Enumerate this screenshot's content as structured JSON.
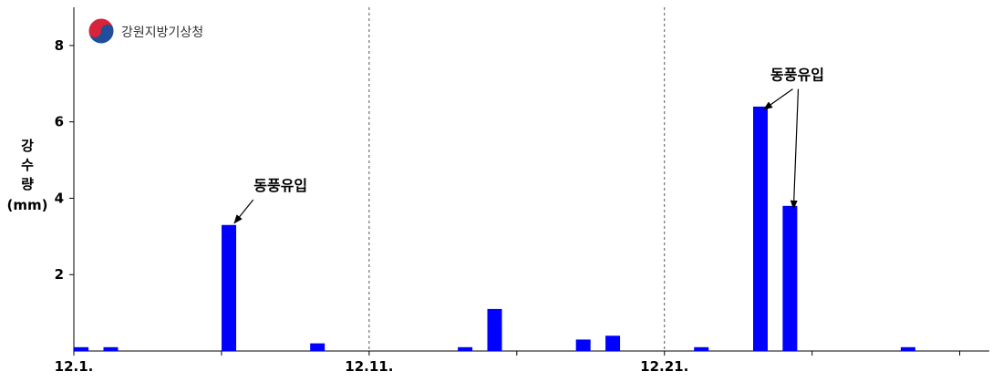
{
  "logo": {
    "text": "강원지방기상청",
    "icon": "taegeuk-icon",
    "colors": {
      "red": "#d6243a",
      "blue": "#1f4e9a"
    }
  },
  "chart_data": {
    "type": "bar",
    "ylabel_lines": [
      "강",
      "수",
      "량",
      "(mm)"
    ],
    "ylim": [
      0,
      9
    ],
    "yticks": [
      2,
      4,
      6,
      8
    ],
    "xticks": [
      "12.1.",
      "12.11.",
      "12.21."
    ],
    "xtick_days": [
      1,
      11,
      21
    ],
    "xlim_days": [
      1,
      32
    ],
    "dashed_vlines_days": [
      11,
      21
    ],
    "grid": false,
    "legend": "none",
    "bar_color": "#0000ff",
    "days": [
      1.25,
      2.25,
      6.25,
      9.25,
      14.25,
      15.25,
      18.25,
      19.25,
      22.25,
      24.25,
      25.25,
      29.25
    ],
    "values": [
      0.1,
      0.1,
      3.3,
      0.2,
      0.1,
      1.1,
      0.3,
      0.4,
      0.1,
      6.4,
      3.8,
      0.1
    ],
    "annotations": [
      {
        "text": "동풍유입",
        "text_day": 8,
        "text_value": 4.2,
        "targets": [
          2
        ]
      },
      {
        "text": "동풍유입",
        "text_day": 25.5,
        "text_value": 7.1,
        "targets": [
          9,
          10
        ]
      }
    ]
  }
}
